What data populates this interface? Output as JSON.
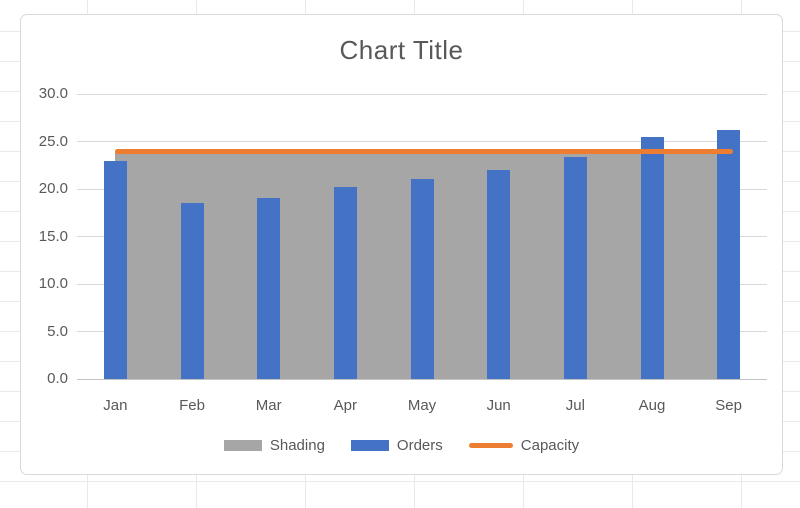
{
  "chart_data": {
    "type": "combo",
    "title": "Chart Title",
    "categories": [
      "Jan",
      "Feb",
      "Mar",
      "Apr",
      "May",
      "Jun",
      "Jul",
      "Aug",
      "Sep"
    ],
    "series": [
      {
        "name": "Shading",
        "type": "area",
        "color": "#A6A6A6",
        "values": [
          24,
          24,
          24,
          24,
          24,
          24,
          24,
          24,
          24
        ]
      },
      {
        "name": "Orders",
        "type": "bar",
        "color": "#4472C4",
        "values": [
          23.0,
          18.5,
          19.1,
          20.2,
          21.1,
          22.0,
          23.4,
          25.5,
          26.2
        ]
      },
      {
        "name": "Capacity",
        "type": "line",
        "color": "#ED7D31",
        "values": [
          24,
          24,
          24,
          24,
          24,
          24,
          24,
          24,
          24
        ]
      }
    ],
    "xlabel": "",
    "ylabel": "",
    "ylim": [
      0,
      30
    ],
    "ytick_step": 5,
    "ytick_labels": [
      "0.0",
      "5.0",
      "10.0",
      "15.0",
      "20.0",
      "25.0",
      "30.0"
    ],
    "grid": true,
    "legend_position": "bottom",
    "legend": [
      "Shading",
      "Orders",
      "Capacity"
    ]
  },
  "frame": {
    "background": "#FFFFFF",
    "border_color": "#D9D9D9",
    "text_color": "#595959",
    "plot_gridline_color": "#D9D9D9",
    "sheet_gridline_color": "#E9E9E9"
  }
}
